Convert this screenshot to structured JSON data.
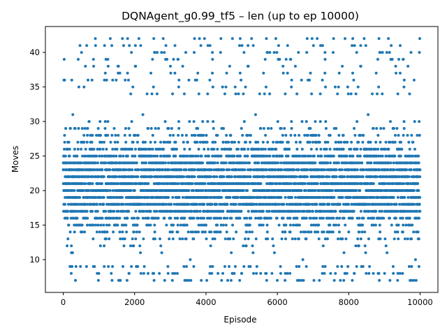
{
  "chart_data": {
    "type": "scatter",
    "title": "DQNAgent_g0.99_tf5 – len (up to ep 10000)",
    "xlabel": "Episode",
    "ylabel": "Moves",
    "xlim": [
      -500,
      10500
    ],
    "ylim": [
      5.25,
      43.75
    ],
    "x_ticks": [
      0,
      2000,
      4000,
      6000,
      8000,
      10000
    ],
    "y_ticks": [
      10,
      15,
      20,
      25,
      30,
      35,
      40
    ],
    "grid": false,
    "marker_color": "#1f77b4",
    "series": [
      {
        "episode_range": [
          1,
          10000
        ],
        "y_min": 7,
        "y_max": 42,
        "values": "integer move counts; one point per episode, dense band roughly 9–34, sparse outliers up to 42"
      }
    ]
  }
}
